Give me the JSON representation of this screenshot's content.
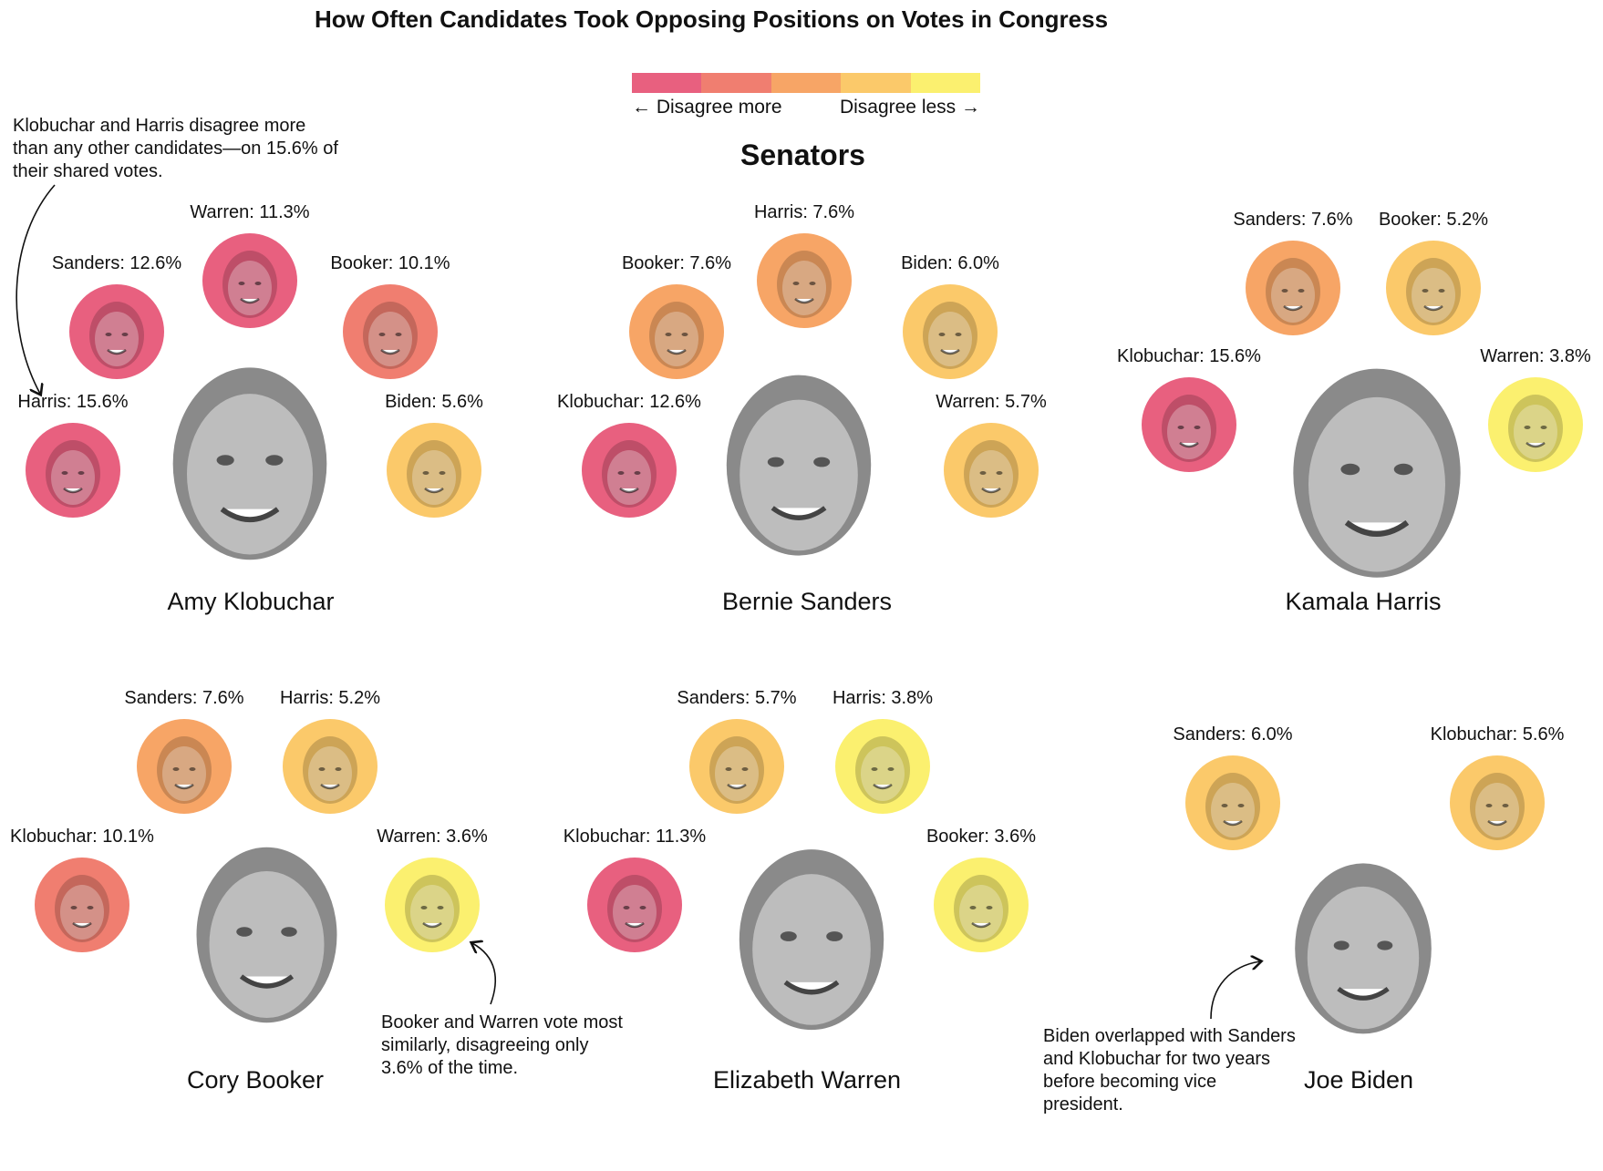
{
  "title": "How Often Candidates Took Opposing Positions on Votes in Congress",
  "legend": {
    "left_label": "← Disagree more",
    "right_label": "Disagree less →",
    "colors": [
      "#e8607f",
      "#f07e70",
      "#f7a566",
      "#fbc96a",
      "#fbf06f"
    ]
  },
  "section_title": "Senators",
  "annotations": {
    "klobuchar_harris": "Klobuchar and Harris disagree more than any other candidates—on 15.6% of their shared votes.",
    "booker_warren": "Booker and Warren vote most similarly, disagreeing only 3.6% of the time.",
    "biden": "Biden overlapped with Sanders and Klobuchar for two years before becoming vice president."
  },
  "panels": [
    {
      "name": "Amy Klobuchar",
      "peers": [
        {
          "label": "Harris: 15.6%",
          "color": "#e8607f"
        },
        {
          "label": "Sanders: 12.6%",
          "color": "#e8607f"
        },
        {
          "label": "Warren: 11.3%",
          "color": "#e8607f"
        },
        {
          "label": "Booker: 10.1%",
          "color": "#f07e70"
        },
        {
          "label": "Biden: 5.6%",
          "color": "#fbc96a"
        }
      ]
    },
    {
      "name": "Bernie Sanders",
      "peers": [
        {
          "label": "Klobuchar: 12.6%",
          "color": "#e8607f"
        },
        {
          "label": "Booker: 7.6%",
          "color": "#f7a566"
        },
        {
          "label": "Harris: 7.6%",
          "color": "#f7a566"
        },
        {
          "label": "Biden: 6.0%",
          "color": "#fbc96a"
        },
        {
          "label": "Warren: 5.7%",
          "color": "#fbc96a"
        }
      ]
    },
    {
      "name": "Kamala Harris",
      "peers": [
        {
          "label": "Klobuchar: 15.6%",
          "color": "#e8607f"
        },
        {
          "label": "Sanders: 7.6%",
          "color": "#f7a566"
        },
        {
          "label": "Booker: 5.2%",
          "color": "#fbc96a"
        },
        {
          "label": "Warren: 3.8%",
          "color": "#fbf06f"
        }
      ]
    },
    {
      "name": "Cory Booker",
      "peers": [
        {
          "label": "Klobuchar: 10.1%",
          "color": "#f07e70"
        },
        {
          "label": "Sanders: 7.6%",
          "color": "#f7a566"
        },
        {
          "label": "Harris: 5.2%",
          "color": "#fbc96a"
        },
        {
          "label": "Warren: 3.6%",
          "color": "#fbf06f"
        }
      ]
    },
    {
      "name": "Elizabeth Warren",
      "peers": [
        {
          "label": "Klobuchar: 11.3%",
          "color": "#e8607f"
        },
        {
          "label": "Sanders: 5.7%",
          "color": "#fbc96a"
        },
        {
          "label": "Harris: 3.8%",
          "color": "#fbf06f"
        },
        {
          "label": "Booker: 3.6%",
          "color": "#fbf06f"
        }
      ]
    },
    {
      "name": "Joe Biden",
      "peers": [
        {
          "label": "Sanders: 6.0%",
          "color": "#fbc96a"
        },
        {
          "label": "Klobuchar: 5.6%",
          "color": "#fbc96a"
        }
      ]
    }
  ],
  "chart_data": {
    "type": "network",
    "title": "How Often Candidates Took Opposing Positions on Votes in Congress",
    "subtitle": "Senators",
    "unit": "%",
    "color_scale": {
      "low": "Disagree less",
      "high": "Disagree more"
    },
    "pairs": [
      {
        "a": "Amy Klobuchar",
        "b": "Harris",
        "value": 15.6
      },
      {
        "a": "Amy Klobuchar",
        "b": "Sanders",
        "value": 12.6
      },
      {
        "a": "Amy Klobuchar",
        "b": "Warren",
        "value": 11.3
      },
      {
        "a": "Amy Klobuchar",
        "b": "Booker",
        "value": 10.1
      },
      {
        "a": "Amy Klobuchar",
        "b": "Biden",
        "value": 5.6
      },
      {
        "a": "Bernie Sanders",
        "b": "Klobuchar",
        "value": 12.6
      },
      {
        "a": "Bernie Sanders",
        "b": "Booker",
        "value": 7.6
      },
      {
        "a": "Bernie Sanders",
        "b": "Harris",
        "value": 7.6
      },
      {
        "a": "Bernie Sanders",
        "b": "Biden",
        "value": 6.0
      },
      {
        "a": "Bernie Sanders",
        "b": "Warren",
        "value": 5.7
      },
      {
        "a": "Kamala Harris",
        "b": "Klobuchar",
        "value": 15.6
      },
      {
        "a": "Kamala Harris",
        "b": "Sanders",
        "value": 7.6
      },
      {
        "a": "Kamala Harris",
        "b": "Booker",
        "value": 5.2
      },
      {
        "a": "Kamala Harris",
        "b": "Warren",
        "value": 3.8
      },
      {
        "a": "Cory Booker",
        "b": "Klobuchar",
        "value": 10.1
      },
      {
        "a": "Cory Booker",
        "b": "Sanders",
        "value": 7.6
      },
      {
        "a": "Cory Booker",
        "b": "Harris",
        "value": 5.2
      },
      {
        "a": "Cory Booker",
        "b": "Warren",
        "value": 3.6
      },
      {
        "a": "Elizabeth Warren",
        "b": "Klobuchar",
        "value": 11.3
      },
      {
        "a": "Elizabeth Warren",
        "b": "Sanders",
        "value": 5.7
      },
      {
        "a": "Elizabeth Warren",
        "b": "Harris",
        "value": 3.8
      },
      {
        "a": "Elizabeth Warren",
        "b": "Booker",
        "value": 3.6
      },
      {
        "a": "Joe Biden",
        "b": "Sanders",
        "value": 6.0
      },
      {
        "a": "Joe Biden",
        "b": "Klobuchar",
        "value": 5.6
      }
    ]
  }
}
